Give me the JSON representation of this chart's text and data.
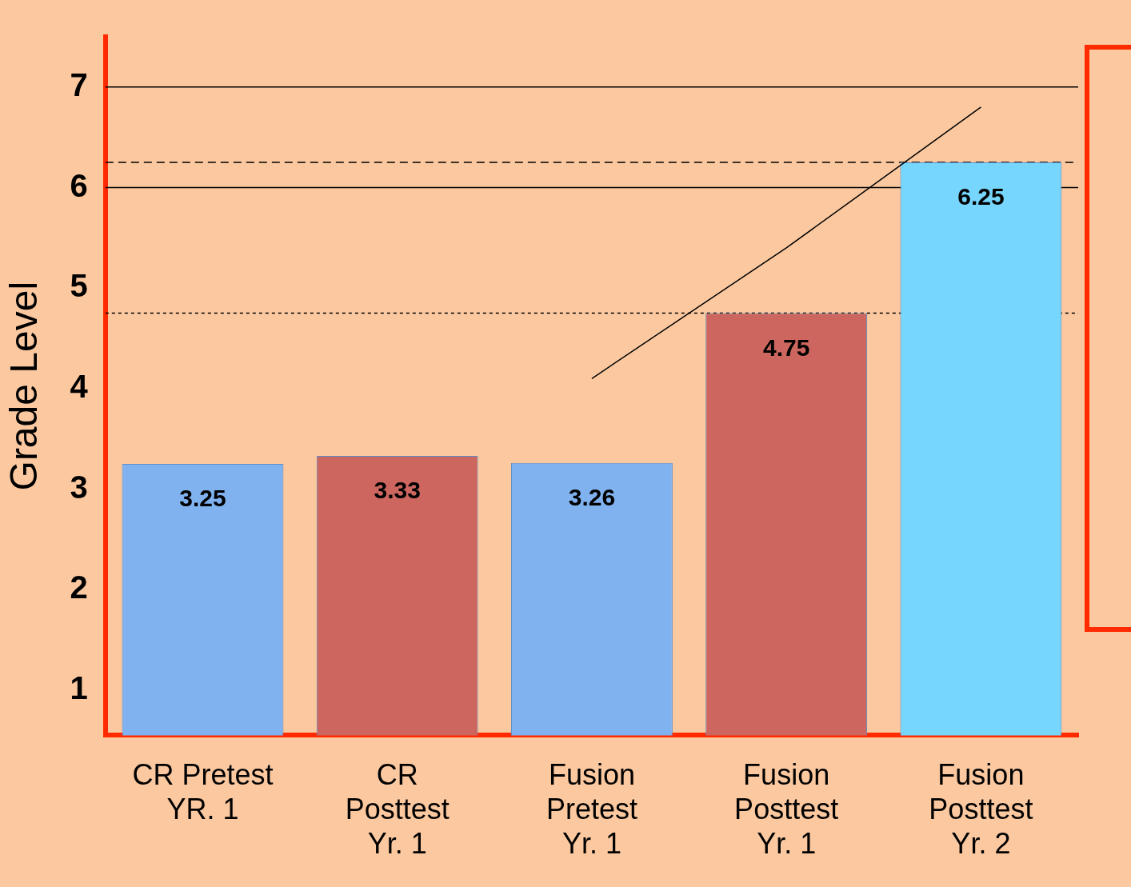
{
  "chart_data": {
    "type": "bar",
    "ylabel": "Grade Level",
    "categories": [
      "CR Pretest\nYR. 1",
      "CR\nPosttest\nYr. 1",
      "Fusion\nPretest\nYr. 1",
      "Fusion\nPosttest\nYr. 1",
      "Fusion\nPosttest\nYr. 2"
    ],
    "series": [
      {
        "values": [
          3.25,
          3.33,
          3.26,
          4.75,
          6.25
        ],
        "value_labels": [
          "3.25",
          "3.33",
          "3.26",
          "4.75",
          "6.25"
        ],
        "colors": [
          "#80b2ef",
          "#cc665e",
          "#80b2ef",
          "#cc665e",
          "#76d6fd"
        ]
      },
      {
        "type": "line",
        "color": "#000000",
        "values": [
          null,
          null,
          4.1,
          5.4,
          6.8
        ]
      }
    ],
    "ylim": [
      0.55,
      7.5
    ],
    "yticks": [
      1,
      2,
      3,
      4,
      5,
      6,
      7
    ],
    "grid": false,
    "legend": false,
    "ref_lines": [
      {
        "axis": "y",
        "value": 7,
        "color": "#000000",
        "line_style": "solid"
      },
      {
        "axis": "y",
        "value": 6.25,
        "color": "#000000",
        "line_style": "dashed"
      },
      {
        "axis": "y",
        "value": 6,
        "color": "#000000",
        "line_style": "solid"
      },
      {
        "axis": "y",
        "value": 4.75,
        "color": "#000000",
        "line_style": "dotted"
      }
    ]
  }
}
